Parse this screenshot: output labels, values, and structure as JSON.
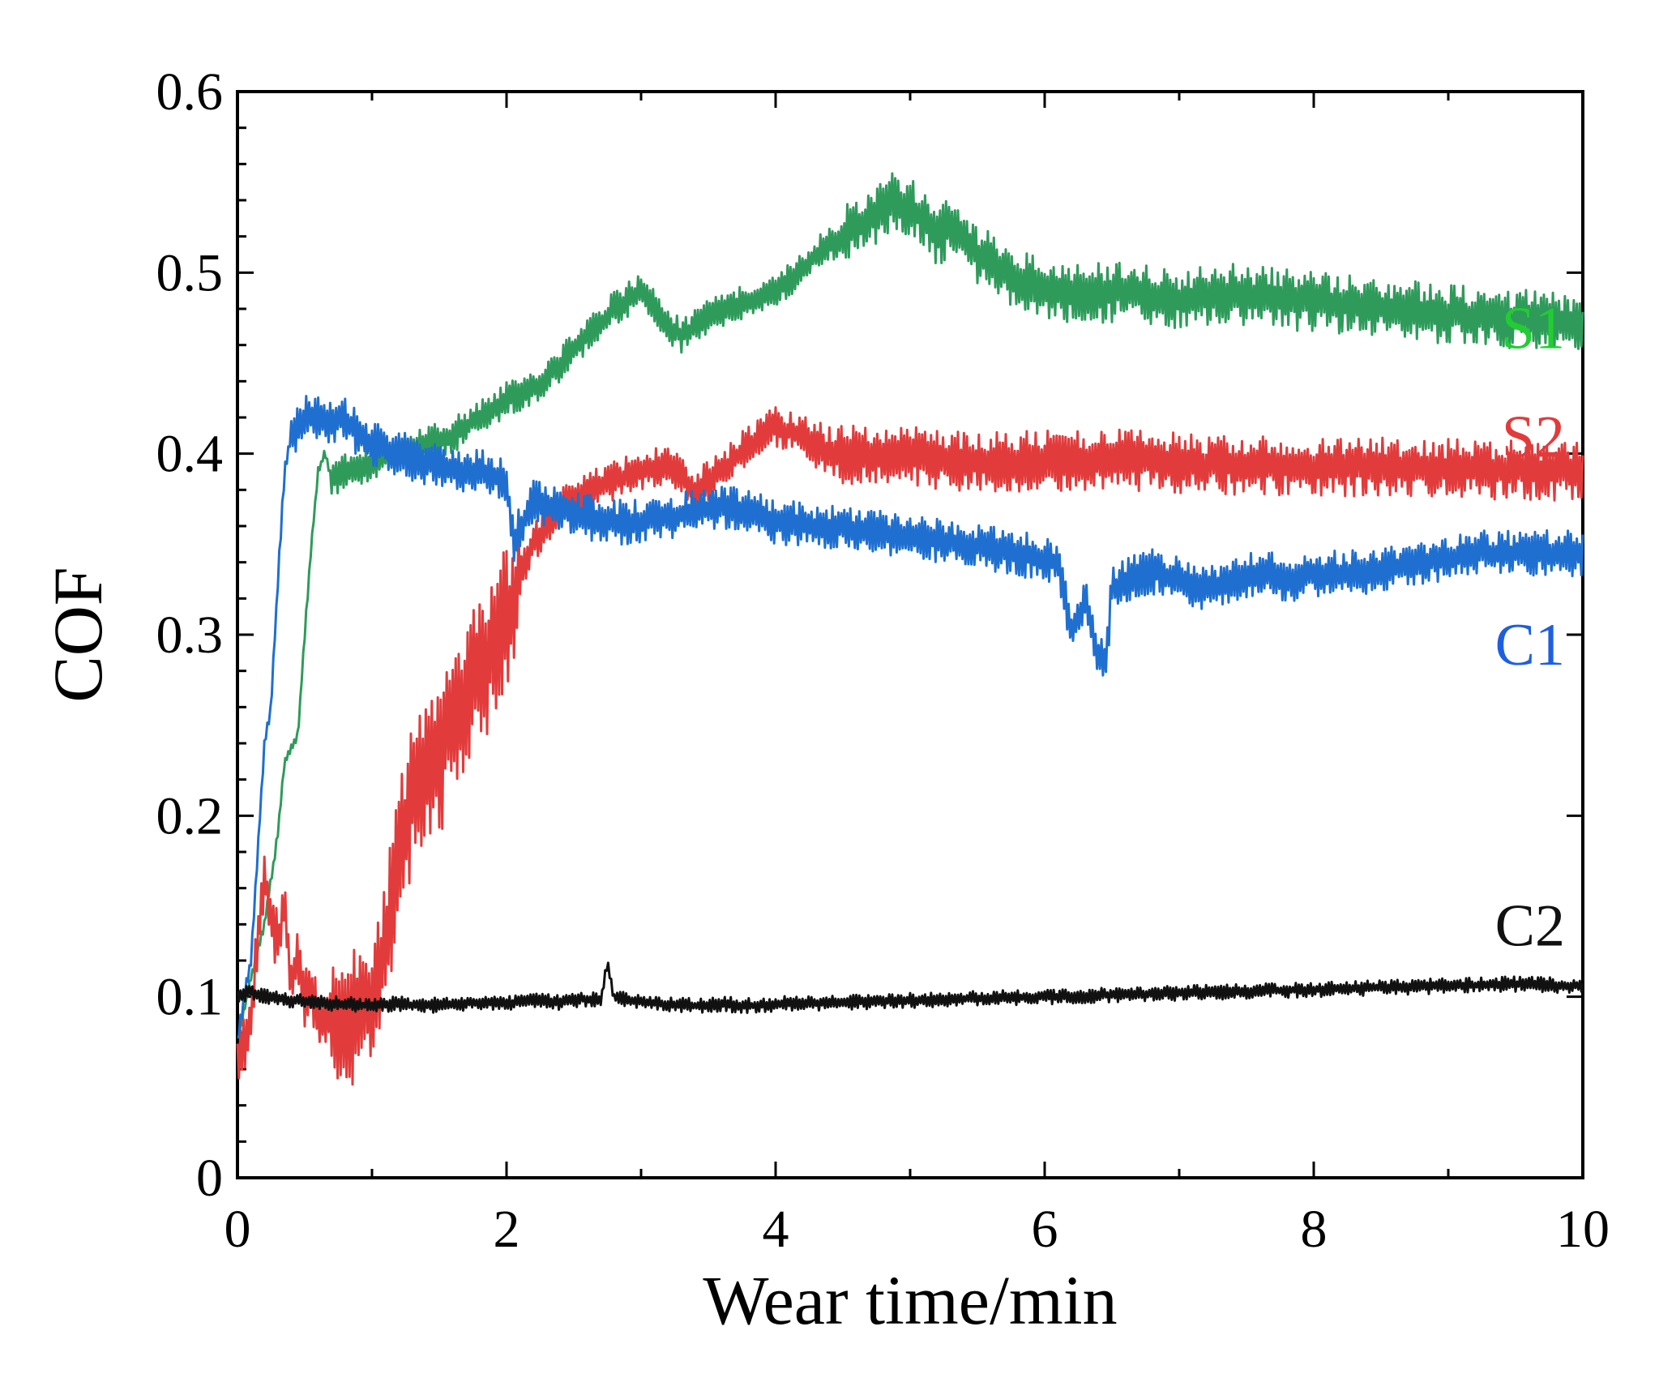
{
  "chart_data": {
    "type": "line",
    "title": "",
    "xlabel": "Wear time/min",
    "ylabel": "COF",
    "xlim": [
      0,
      10
    ],
    "ylim": [
      0,
      0.6
    ],
    "grid": false,
    "xticks": [
      0,
      2,
      4,
      6,
      8,
      10
    ],
    "yticks": [
      0,
      0.1,
      0.2,
      0.3,
      0.4,
      0.5,
      0.6
    ],
    "xtick_labels": [
      "0",
      "2",
      "4",
      "6",
      "8",
      "10"
    ],
    "ytick_labels": [
      "0",
      "0.1",
      "0.2",
      "0.3",
      "0.4",
      "0.5",
      "0.6"
    ],
    "series": [
      {
        "name": "S1",
        "color": "#2e9b5a",
        "label_color": "#22cc33",
        "x": [
          0,
          0.1,
          0.2,
          0.3,
          0.35,
          0.45,
          0.5,
          0.55,
          0.6,
          0.65,
          0.7,
          0.8,
          1.0,
          1.2,
          1.4,
          1.6,
          1.8,
          2.0,
          2.2,
          2.4,
          2.6,
          2.8,
          3.0,
          3.2,
          3.3,
          3.5,
          3.7,
          3.9,
          4.1,
          4.3,
          4.5,
          4.7,
          4.9,
          5.0,
          5.1,
          5.2,
          5.3,
          5.5,
          5.7,
          6.0,
          6.3,
          6.6,
          7.0,
          7.4,
          7.8,
          8.2,
          8.6,
          9.0,
          9.4,
          10.0
        ],
        "y": [
          0.075,
          0.11,
          0.14,
          0.19,
          0.23,
          0.245,
          0.3,
          0.35,
          0.39,
          0.4,
          0.385,
          0.39,
          0.395,
          0.4,
          0.405,
          0.41,
          0.42,
          0.43,
          0.435,
          0.45,
          0.465,
          0.48,
          0.49,
          0.47,
          0.465,
          0.475,
          0.482,
          0.488,
          0.495,
          0.51,
          0.52,
          0.53,
          0.54,
          0.535,
          0.53,
          0.52,
          0.525,
          0.51,
          0.5,
          0.49,
          0.488,
          0.49,
          0.485,
          0.488,
          0.485,
          0.483,
          0.48,
          0.477,
          0.475,
          0.472
        ]
      },
      {
        "name": "S2",
        "color": "#e23b3b",
        "label_color": "#e23b3b",
        "x": [
          0,
          0.05,
          0.1,
          0.15,
          0.2,
          0.25,
          0.3,
          0.35,
          0.4,
          0.45,
          0.5,
          0.55,
          0.6,
          0.7,
          0.8,
          0.9,
          1.0,
          1.1,
          1.2,
          1.3,
          1.4,
          1.5,
          1.6,
          1.7,
          1.8,
          1.9,
          2.0,
          2.1,
          2.2,
          2.4,
          2.6,
          2.8,
          3.0,
          3.2,
          3.4,
          3.6,
          3.8,
          4.0,
          4.2,
          4.4,
          4.7,
          5.0,
          5.5,
          6.0,
          6.5,
          7.0,
          7.5,
          8.0,
          8.5,
          9.0,
          9.5,
          10.0
        ],
        "y": [
          0.06,
          0.075,
          0.09,
          0.13,
          0.17,
          0.14,
          0.13,
          0.15,
          0.11,
          0.12,
          0.1,
          0.105,
          0.09,
          0.088,
          0.092,
          0.09,
          0.1,
          0.13,
          0.18,
          0.21,
          0.22,
          0.23,
          0.25,
          0.27,
          0.28,
          0.29,
          0.31,
          0.33,
          0.35,
          0.37,
          0.38,
          0.385,
          0.39,
          0.395,
          0.38,
          0.39,
          0.405,
          0.415,
          0.41,
          0.4,
          0.4,
          0.398,
          0.395,
          0.396,
          0.397,
          0.395,
          0.394,
          0.393,
          0.392,
          0.392,
          0.391,
          0.39
        ]
      },
      {
        "name": "C1",
        "color": "#1e6fd0",
        "label_color": "#1e5fe0",
        "x": [
          0,
          0.05,
          0.1,
          0.15,
          0.2,
          0.25,
          0.3,
          0.35,
          0.4,
          0.5,
          0.6,
          0.7,
          0.8,
          0.9,
          1.0,
          1.2,
          1.4,
          1.6,
          1.8,
          2.0,
          2.05,
          2.2,
          2.4,
          2.6,
          2.8,
          3.0,
          3.2,
          3.4,
          3.6,
          3.8,
          4.0,
          4.3,
          4.6,
          5.0,
          5.4,
          5.8,
          6.1,
          6.2,
          6.3,
          6.4,
          6.45,
          6.5,
          6.6,
          6.8,
          7.0,
          7.2,
          7.4,
          7.6,
          7.8,
          8.0,
          8.4,
          8.8,
          9.2,
          9.6,
          10.0
        ],
        "y": [
          0.075,
          0.1,
          0.12,
          0.18,
          0.24,
          0.26,
          0.33,
          0.39,
          0.41,
          0.42,
          0.42,
          0.415,
          0.42,
          0.41,
          0.405,
          0.4,
          0.395,
          0.39,
          0.39,
          0.385,
          0.35,
          0.375,
          0.37,
          0.365,
          0.362,
          0.363,
          0.365,
          0.368,
          0.37,
          0.368,
          0.362,
          0.36,
          0.358,
          0.355,
          0.35,
          0.345,
          0.34,
          0.3,
          0.32,
          0.29,
          0.28,
          0.325,
          0.33,
          0.335,
          0.33,
          0.325,
          0.33,
          0.335,
          0.33,
          0.333,
          0.335,
          0.34,
          0.345,
          0.345,
          0.345
        ]
      },
      {
        "name": "C2",
        "color": "#111111",
        "label_color": "#111111",
        "x": [
          0,
          0.1,
          0.2,
          0.4,
          0.6,
          0.8,
          1.0,
          1.2,
          1.4,
          1.6,
          1.8,
          2.0,
          2.2,
          2.4,
          2.6,
          2.7,
          2.75,
          2.8,
          3.0,
          3.2,
          3.4,
          3.6,
          3.8,
          4.0,
          4.5,
          5.0,
          5.5,
          6.0,
          6.5,
          7.0,
          7.5,
          8.0,
          8.5,
          9.0,
          9.5,
          10.0
        ],
        "y": [
          0.1,
          0.103,
          0.1,
          0.098,
          0.097,
          0.096,
          0.095,
          0.096,
          0.095,
          0.096,
          0.097,
          0.096,
          0.098,
          0.097,
          0.099,
          0.098,
          0.118,
          0.1,
          0.097,
          0.096,
          0.095,
          0.096,
          0.095,
          0.096,
          0.097,
          0.098,
          0.099,
          0.1,
          0.101,
          0.102,
          0.103,
          0.104,
          0.105,
          0.106,
          0.107,
          0.106
        ]
      }
    ]
  }
}
